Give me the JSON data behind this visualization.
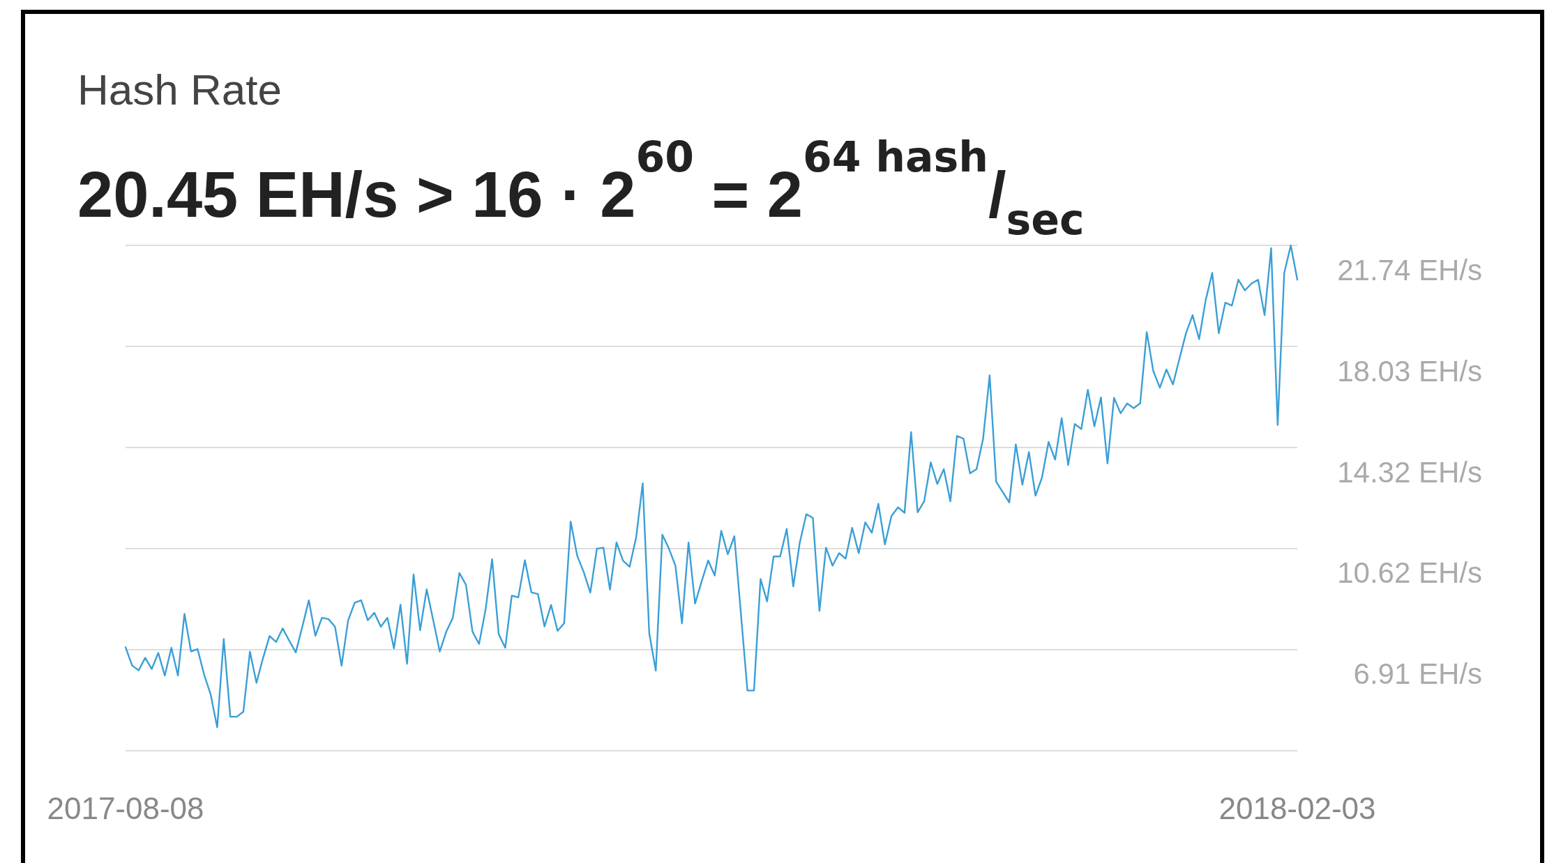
{
  "chart_data": {
    "type": "line",
    "title": "Hash Rate",
    "subtitle": "20.45 EH/s > 16 · 2$^{60}$ = 2$^{64 hash}$/$_{sec}$",
    "x": [
      "2017-08-08",
      "2017-08-09",
      "2017-08-10",
      "2017-08-11",
      "2017-08-12",
      "2017-08-13",
      "2017-08-14",
      "2017-08-15",
      "2017-08-16",
      "2017-08-17",
      "2017-08-18",
      "2017-08-19",
      "2017-08-20",
      "2017-08-21",
      "2017-08-22",
      "2017-08-23",
      "2017-08-24",
      "2017-08-25",
      "2017-08-26",
      "2017-08-27",
      "2017-08-28",
      "2017-08-29",
      "2017-08-30",
      "2017-08-31",
      "2017-09-01",
      "2017-09-02",
      "2017-09-03",
      "2017-09-04",
      "2017-09-05",
      "2017-09-06",
      "2017-09-07",
      "2017-09-08",
      "2017-09-09",
      "2017-09-10",
      "2017-09-11",
      "2017-09-12",
      "2017-09-13",
      "2017-09-14",
      "2017-09-15",
      "2017-09-16",
      "2017-09-17",
      "2017-09-18",
      "2017-09-19",
      "2017-09-20",
      "2017-09-21",
      "2017-09-22",
      "2017-09-23",
      "2017-09-24",
      "2017-09-25",
      "2017-09-26",
      "2017-09-27",
      "2017-09-28",
      "2017-09-29",
      "2017-09-30",
      "2017-10-01",
      "2017-10-02",
      "2017-10-03",
      "2017-10-04",
      "2017-10-05",
      "2017-10-06",
      "2017-10-07",
      "2017-10-08",
      "2017-10-09",
      "2017-10-10",
      "2017-10-11",
      "2017-10-12",
      "2017-10-13",
      "2017-10-14",
      "2017-10-15",
      "2017-10-16",
      "2017-10-17",
      "2017-10-18",
      "2017-10-19",
      "2017-10-20",
      "2017-10-21",
      "2017-10-22",
      "2017-10-23",
      "2017-10-24",
      "2017-10-25",
      "2017-10-26",
      "2017-10-27",
      "2017-10-28",
      "2017-10-29",
      "2017-10-30",
      "2017-10-31",
      "2017-11-01",
      "2017-11-02",
      "2017-11-03",
      "2017-11-04",
      "2017-11-05",
      "2017-11-06",
      "2017-11-07",
      "2017-11-08",
      "2017-11-09",
      "2017-11-11",
      "2017-11-12",
      "2017-11-13",
      "2017-11-14",
      "2017-11-15",
      "2017-11-16",
      "2017-11-17",
      "2017-11-18",
      "2017-11-19",
      "2017-11-20",
      "2017-11-21",
      "2017-11-22",
      "2017-11-23",
      "2017-11-24",
      "2017-11-25",
      "2017-11-26",
      "2017-11-27",
      "2017-11-28",
      "2017-11-29",
      "2017-11-30",
      "2017-12-01",
      "2017-12-02",
      "2017-12-03",
      "2017-12-04",
      "2017-12-05",
      "2017-12-06",
      "2017-12-07",
      "2017-12-08",
      "2017-12-09",
      "2017-12-10",
      "2017-12-11",
      "2017-12-12",
      "2017-12-13",
      "2017-12-14",
      "2017-12-15",
      "2017-12-16",
      "2017-12-17",
      "2017-12-18",
      "2017-12-19",
      "2017-12-20",
      "2017-12-21",
      "2017-12-22",
      "2017-12-23",
      "2017-12-24",
      "2017-12-25",
      "2017-12-26",
      "2017-12-27",
      "2017-12-28",
      "2017-12-29",
      "2017-12-30",
      "2017-12-31",
      "2018-01-01",
      "2018-01-02",
      "2018-01-03",
      "2018-01-04",
      "2018-01-05",
      "2018-01-06",
      "2018-01-07",
      "2018-01-08",
      "2018-01-09",
      "2018-01-10",
      "2018-01-11",
      "2018-01-12",
      "2018-01-13",
      "2018-01-14",
      "2018-01-15",
      "2018-01-16",
      "2018-01-17",
      "2018-01-18",
      "2018-01-19",
      "2018-01-20",
      "2018-01-21",
      "2018-01-22",
      "2018-01-23",
      "2018-01-24",
      "2018-01-25",
      "2018-01-26",
      "2018-01-27",
      "2018-01-28",
      "2018-01-29",
      "2018-01-30",
      "2018-01-31",
      "2018-02-01",
      "2018-02-02",
      "2018-02-03"
    ],
    "series": [
      {
        "color": "#3a9fd6",
        "values": [
          7.0,
          6.33,
          6.15,
          6.61,
          6.2,
          6.79,
          5.96,
          6.98,
          5.96,
          8.22,
          6.84,
          6.93,
          6.0,
          5.27,
          4.06,
          7.3,
          4.45,
          4.45,
          4.63,
          6.84,
          5.69,
          6.6,
          7.41,
          7.19,
          7.69,
          7.24,
          6.81,
          7.75,
          8.72,
          7.42,
          8.08,
          8.03,
          7.75,
          6.32,
          7.98,
          8.63,
          8.72,
          7.99,
          8.26,
          7.75,
          8.08,
          6.96,
          8.56,
          6.39,
          9.67,
          7.62,
          9.12,
          7.99,
          6.84,
          7.57,
          8.08,
          9.72,
          9.29,
          7.57,
          7.12,
          8.38,
          10.23,
          7.48,
          6.98,
          8.89,
          8.83,
          10.19,
          9.01,
          8.95,
          7.76,
          8.55,
          7.6,
          7.88,
          11.61,
          10.35,
          9.75,
          9.0,
          10.61,
          10.65,
          9.11,
          10.84,
          10.17,
          9.95,
          11.03,
          13.01,
          7.51,
          6.14,
          11.13,
          10.62,
          9.99,
          7.87,
          10.84,
          8.6,
          9.41,
          10.18,
          9.63,
          11.27,
          10.41,
          11.07,
          5.41,
          5.41,
          9.5,
          8.68,
          10.33,
          10.33,
          11.34,
          9.23,
          10.84,
          11.88,
          11.74,
          8.33,
          10.65,
          9.99,
          10.45,
          10.25,
          11.38,
          10.45,
          11.58,
          11.2,
          12.26,
          10.77,
          11.81,
          12.13,
          11.93,
          14.89,
          11.95,
          12.35,
          13.78,
          12.99,
          13.53,
          12.35,
          14.75,
          14.65,
          13.38,
          13.53,
          14.65,
          16.97,
          13.07,
          12.69,
          12.31,
          14.44,
          12.96,
          14.16,
          12.56,
          13.23,
          14.53,
          13.88,
          15.4,
          13.68,
          15.19,
          15.0,
          16.44,
          15.1,
          16.16,
          13.74,
          16.15,
          15.58,
          15.94,
          15.77,
          15.95,
          18.56,
          17.13,
          16.52,
          17.19,
          16.64,
          17.59,
          18.52,
          19.18,
          18.3,
          19.73,
          20.73,
          18.52,
          19.64,
          19.53,
          20.48,
          20.09,
          20.34,
          20.48,
          19.18,
          21.64,
          15.15,
          20.73,
          21.74,
          20.48
        ]
      }
    ],
    "xlim": [
      "2017-08-08",
      "2018-02-03"
    ],
    "xticks": [
      {
        "value": "2017-08-08",
        "label": "2017-08-08"
      },
      {
        "value": "2018-02-03",
        "label": "2018-02-03"
      }
    ],
    "ylim": [
      3.2,
      21.74
    ],
    "yticks": [
      {
        "value": 3.2,
        "label": null
      },
      {
        "value": 6.91,
        "label": "6.91 EH/s"
      },
      {
        "value": 10.62,
        "label": "10.62 EH/s"
      },
      {
        "value": 14.32,
        "label": "14.32 EH/s"
      },
      {
        "value": 18.03,
        "label": "18.03 EH/s"
      },
      {
        "value": 21.74,
        "label": "21.74 EH/s"
      }
    ],
    "grid": "y",
    "marker": "none",
    "line_style": "solid"
  }
}
